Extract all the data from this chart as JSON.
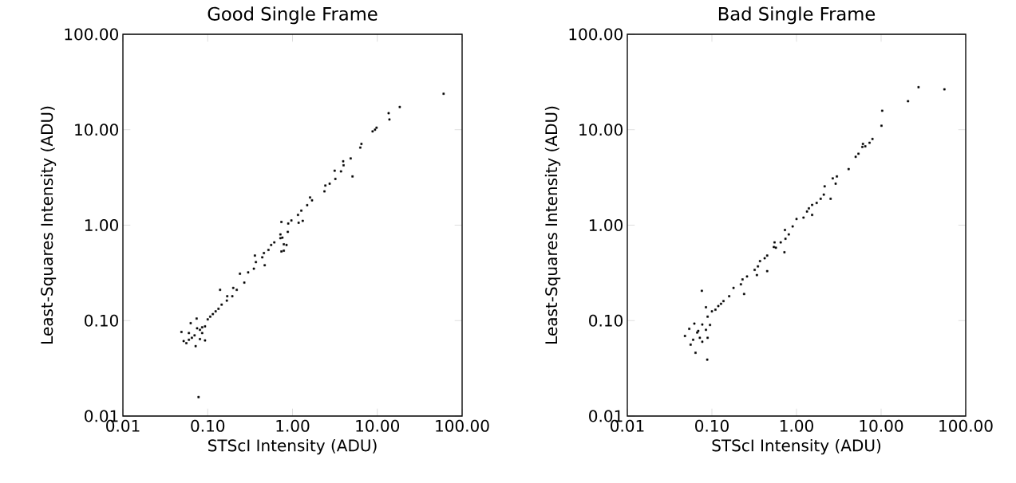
{
  "chart_data": [
    {
      "type": "scatter",
      "title": "Good Single Frame",
      "xlabel": "STScI Intensity (ADU)",
      "ylabel": "Least-Squares Intensity (ADU)",
      "log": "xy",
      "marker": "square",
      "color": "#000000",
      "xlim": [
        0.01,
        100
      ],
      "ylim": [
        0.01,
        100
      ],
      "xticks": [
        0.01,
        {
          "value": 0.1,
          "label": "0.10"
        },
        {
          "value": 1,
          "label": "1.00"
        },
        {
          "value": 10,
          "label": "10.00"
        },
        {
          "value": 100,
          "label": "100.00"
        }
      ],
      "yticks": [
        0.01,
        {
          "value": 0.1,
          "label": "0.10"
        },
        {
          "value": 1,
          "label": "1.00"
        },
        {
          "value": 10,
          "label": "10.00"
        },
        {
          "value": 100,
          "label": "100.00"
        }
      ],
      "x": [
        60.5,
        18.4,
        13.6,
        13.9,
        9.8,
        9.4,
        8.8,
        6.5,
        6.3,
        4.85,
        3.96,
        4.0,
        5.1,
        3.14,
        3.73,
        3.2,
        2.74,
        2.44,
        2.38,
        1.61,
        1.7,
        1.49,
        1.27,
        1.16,
        1.32,
        1.18,
        0.97,
        0.89,
        0.74,
        0.88,
        0.72,
        0.76,
        0.72,
        0.79,
        0.74,
        0.79,
        0.85,
        0.61,
        0.56,
        0.52,
        0.46,
        0.44,
        0.36,
        0.37,
        0.47,
        0.35,
        0.3,
        0.27,
        0.24,
        0.2,
        0.14,
        0.17,
        0.146,
        0.124,
        0.1,
        0.086,
        0.074,
        0.063,
        0.049,
        0.056,
        0.072,
        0.093,
        0.078,
        0.07,
        0.081,
        0.065,
        0.086,
        0.075,
        0.06,
        0.093,
        0.107,
        0.115,
        0.134,
        0.168,
        0.195,
        0.22,
        0.06,
        0.081,
        0.052
      ],
      "values": [
        23.8,
        17.3,
        14.9,
        12.8,
        10.5,
        10.0,
        9.6,
        7.1,
        6.5,
        5.0,
        4.67,
        4.24,
        3.24,
        3.72,
        3.66,
        3.05,
        2.72,
        2.6,
        2.26,
        1.95,
        1.82,
        1.62,
        1.42,
        1.28,
        1.11,
        1.06,
        1.12,
        1.04,
        1.08,
        0.85,
        0.8,
        0.74,
        0.73,
        0.63,
        0.53,
        0.54,
        0.62,
        0.66,
        0.62,
        0.55,
        0.51,
        0.46,
        0.48,
        0.41,
        0.38,
        0.35,
        0.32,
        0.25,
        0.31,
        0.22,
        0.21,
        0.18,
        0.147,
        0.125,
        0.103,
        0.085,
        0.105,
        0.094,
        0.076,
        0.058,
        0.054,
        0.062,
        0.0158,
        0.07,
        0.08,
        0.066,
        0.074,
        0.083,
        0.074,
        0.087,
        0.11,
        0.117,
        0.133,
        0.162,
        0.18,
        0.21,
        0.063,
        0.064,
        0.061
      ]
    },
    {
      "type": "scatter",
      "title": "Bad Single Frame",
      "xlabel": "STScI Intensity (ADU)",
      "ylabel": "Least-Squares Intensity (ADU)",
      "log": "xy",
      "marker": "square",
      "color": "#000000",
      "xlim": [
        0.01,
        100
      ],
      "ylim": [
        0.01,
        100
      ],
      "xticks": [
        0.01,
        {
          "value": 0.1,
          "label": "0.10"
        },
        {
          "value": 1,
          "label": "1.00"
        },
        {
          "value": 10,
          "label": "10.00"
        },
        {
          "value": 100,
          "label": "100.00"
        }
      ],
      "yticks": [
        0.01,
        {
          "value": 0.1,
          "label": "0.10"
        },
        {
          "value": 1,
          "label": "1.00"
        },
        {
          "value": 10,
          "label": "10.00"
        },
        {
          "value": 100,
          "label": "100.00"
        }
      ],
      "x": [
        56,
        27.7,
        20.8,
        10.3,
        10.1,
        7.9,
        7.3,
        6.5,
        6.0,
        6.1,
        5.4,
        5.0,
        4.13,
        3.0,
        2.68,
        2.9,
        2.15,
        2.1,
        2.53,
        1.93,
        1.73,
        1.53,
        1.4,
        1.33,
        1.53,
        1.21,
        1.0,
        0.9,
        0.73,
        0.81,
        0.74,
        0.72,
        0.65,
        0.57,
        0.54,
        0.55,
        0.45,
        0.45,
        0.42,
        0.37,
        0.35,
        0.34,
        0.32,
        0.26,
        0.24,
        0.23,
        0.22,
        0.18,
        0.16,
        0.137,
        0.119,
        0.1,
        0.076,
        0.089,
        0.085,
        0.077,
        0.067,
        0.072,
        0.06,
        0.054,
        0.048,
        0.056,
        0.064,
        0.088,
        0.085,
        0.095,
        0.069,
        0.077,
        0.089,
        0.062,
        0.11,
        0.128
      ],
      "values": [
        26.5,
        27.9,
        19.9,
        15.8,
        11.0,
        8.0,
        7.3,
        6.7,
        6.6,
        7.1,
        5.6,
        5.2,
        3.87,
        3.24,
        3.09,
        2.72,
        2.55,
        2.09,
        1.89,
        1.89,
        1.71,
        1.63,
        1.5,
        1.39,
        1.28,
        1.2,
        1.16,
        0.97,
        0.89,
        0.8,
        0.72,
        0.52,
        0.66,
        0.58,
        0.59,
        0.66,
        0.48,
        0.33,
        0.45,
        0.42,
        0.37,
        0.3,
        0.34,
        0.29,
        0.19,
        0.27,
        0.24,
        0.22,
        0.18,
        0.16,
        0.142,
        0.125,
        0.205,
        0.11,
        0.138,
        0.091,
        0.075,
        0.066,
        0.063,
        0.082,
        0.069,
        0.056,
        0.046,
        0.039,
        0.08,
        0.09,
        0.078,
        0.06,
        0.066,
        0.093,
        0.13,
        0.15
      ]
    }
  ]
}
